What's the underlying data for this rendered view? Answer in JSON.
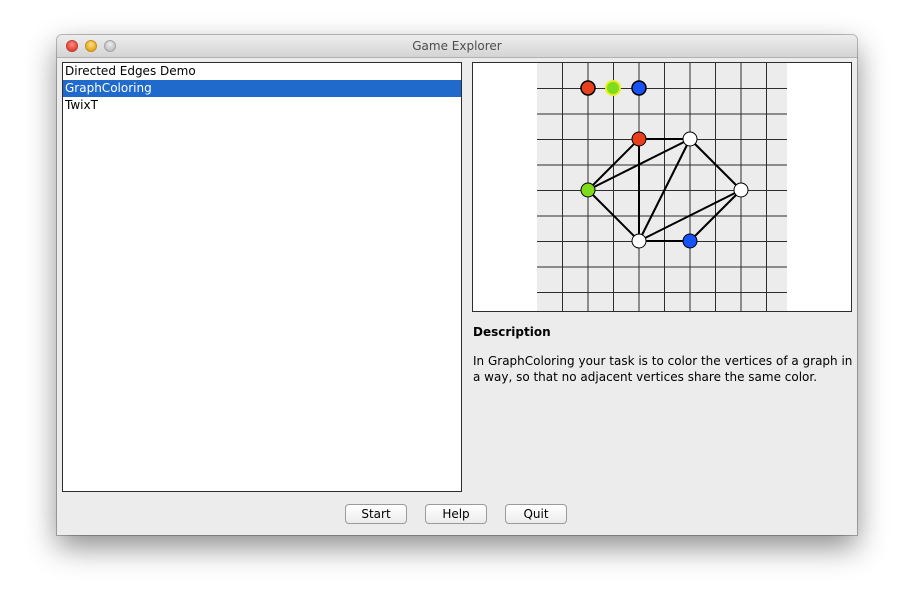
{
  "window": {
    "title": "Game Explorer"
  },
  "game_list": {
    "items": [
      {
        "label": "Directed Edges Demo",
        "selected": false
      },
      {
        "label": "GraphColoring",
        "selected": true
      },
      {
        "label": "TwixT",
        "selected": false
      }
    ]
  },
  "preview": {
    "palette": [
      "#e8401c",
      "#7edc1c",
      "#1652f5"
    ],
    "graph": {
      "vertices": [
        {
          "id": "a",
          "color": "#e8401c"
        },
        {
          "id": "b",
          "color": "#ffffff"
        },
        {
          "id": "c",
          "color": "#7edc1c"
        },
        {
          "id": "d",
          "color": "#ffffff"
        },
        {
          "id": "e",
          "color": "#ffffff"
        },
        {
          "id": "f",
          "color": "#1652f5"
        }
      ],
      "edges": [
        [
          "a",
          "b"
        ],
        [
          "a",
          "c"
        ],
        [
          "a",
          "e"
        ],
        [
          "b",
          "c"
        ],
        [
          "b",
          "d"
        ],
        [
          "b",
          "e"
        ],
        [
          "c",
          "e"
        ],
        [
          "d",
          "e"
        ],
        [
          "d",
          "f"
        ],
        [
          "e",
          "f"
        ]
      ]
    }
  },
  "description": {
    "heading": "Description",
    "text": "In GraphColoring your task is to color the vertices of a graph in a way, so that no adjacent vertices share the same color."
  },
  "buttons": {
    "start": "Start",
    "help": "Help",
    "quit": "Quit"
  }
}
